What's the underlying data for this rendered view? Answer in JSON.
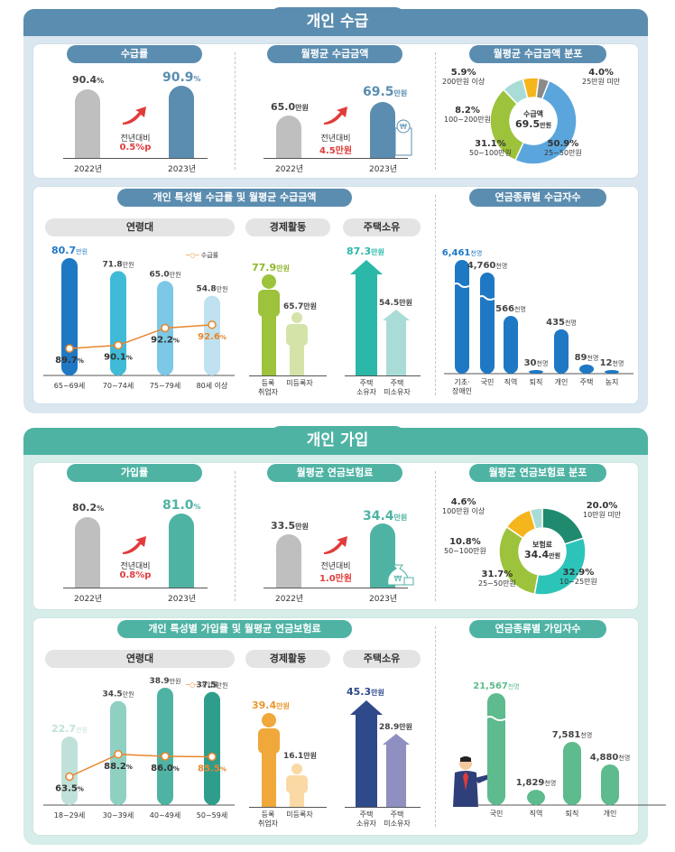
{
  "colors": {
    "receive_main": "#5b8db0",
    "join_main": "#4fb3a4",
    "gray_bar": "#bfbfbf",
    "receive_bar": "#5b8db0",
    "join_bar": "#4fb3a4",
    "red": "#e23b3b",
    "orange": "#e8862c"
  },
  "receive": {
    "title": "개인 수급",
    "rate": {
      "pill": "수급률",
      "y2022": "90.4",
      "y2023": "90.9",
      "unit": "%",
      "chg_label": "전년대비",
      "chg_value": "0.5",
      "chg_unit": "%p",
      "x2022": "2022년",
      "x2023": "2023년"
    },
    "amount": {
      "pill": "월평균 수급금액",
      "y2022": "65.0",
      "y2023": "69.5",
      "unit": "만원",
      "chg_label": "전년대비",
      "chg_value": "4.5",
      "chg_unit": "만원",
      "x2022": "2022년",
      "x2023": "2023년"
    },
    "dist": {
      "pill": "월평균 수급금액 분포",
      "center_label": "수급액",
      "center_value": "69.5",
      "center_unit": "만원",
      "slices": [
        {
          "pct": "50.9",
          "range": "25~50만원"
        },
        {
          "pct": "31.1",
          "range": "50~100만원"
        },
        {
          "pct": "8.2",
          "range": "100~200만원"
        },
        {
          "pct": "5.9",
          "range": "200만원 이상"
        },
        {
          "pct": "4.0",
          "range": "25만원 미만"
        }
      ]
    },
    "char": {
      "pill": "개인 특성별 수급률 및 월평균 수급금액",
      "age_pill": "연령대",
      "econ_pill": "경제활동",
      "house_pill": "주택소유",
      "legend": "수급률",
      "age": [
        {
          "cat": "65~69세",
          "amount": "80.7",
          "rate": "89.7"
        },
        {
          "cat": "70~74세",
          "amount": "71.8",
          "rate": "90.1"
        },
        {
          "cat": "75~79세",
          "amount": "65.0",
          "rate": "92.2"
        },
        {
          "cat": "80세 이상",
          "amount": "54.8",
          "rate": "92.6"
        }
      ],
      "econ": [
        {
          "cat1": "등록",
          "cat2": "취업자",
          "amount": "77.9"
        },
        {
          "cat1": "미등록자",
          "cat2": "",
          "amount": "65.7"
        }
      ],
      "house": [
        {
          "cat1": "주택",
          "cat2": "소유자",
          "amount": "87.3"
        },
        {
          "cat1": "주택",
          "cat2": "미소유자",
          "amount": "54.5"
        }
      ],
      "unit": "만원"
    },
    "types": {
      "pill": "연금종류별 수급자수",
      "unit": "천명",
      "items": [
        {
          "cat1": "기초·",
          "cat2": "장애인",
          "value": "6,461"
        },
        {
          "cat1": "국민",
          "cat2": "",
          "value": "4,760"
        },
        {
          "cat1": "직역",
          "cat2": "",
          "value": "566"
        },
        {
          "cat1": "퇴직",
          "cat2": "",
          "value": "30"
        },
        {
          "cat1": "개인",
          "cat2": "",
          "value": "435"
        },
        {
          "cat1": "주택",
          "cat2": "",
          "value": "89"
        },
        {
          "cat1": "농지",
          "cat2": "",
          "value": "12"
        }
      ]
    }
  },
  "join": {
    "title": "개인 가입",
    "rate": {
      "pill": "가입률",
      "y2022": "80.2",
      "y2023": "81.0",
      "unit": "%",
      "chg_label": "전년대비",
      "chg_value": "0.8",
      "chg_unit": "%p",
      "x2022": "2022년",
      "x2023": "2023년"
    },
    "amount": {
      "pill": "월평균 연금보험료",
      "y2022": "33.5",
      "y2023": "34.4",
      "unit": "만원",
      "chg_label": "전년대비",
      "chg_value": "1.0",
      "chg_unit": "만원",
      "x2022": "2022년",
      "x2023": "2023년"
    },
    "dist": {
      "pill": "월평균 연금보험료 분포",
      "center_label": "보험료",
      "center_value": "34.4",
      "center_unit": "만원",
      "slices": [
        {
          "pct": "20.0",
          "range": "10만원 미만"
        },
        {
          "pct": "32.9",
          "range": "10~25만원"
        },
        {
          "pct": "31.7",
          "range": "25~50만원"
        },
        {
          "pct": "10.8",
          "range": "50~100만원"
        },
        {
          "pct": "4.6",
          "range": "100만원 이상"
        }
      ]
    },
    "char": {
      "pill": "개인 특성별 가입률 및 월평균 연금보험료",
      "age_pill": "연령대",
      "econ_pill": "경제활동",
      "house_pill": "주택소유",
      "legend": "가입률",
      "age": [
        {
          "cat": "18~29세",
          "amount": "22.7",
          "rate": "63.5"
        },
        {
          "cat": "30~39세",
          "amount": "34.5",
          "rate": "88.2"
        },
        {
          "cat": "40~49세",
          "amount": "38.9",
          "rate": "86.0"
        },
        {
          "cat": "50~59세",
          "amount": "37.5",
          "rate": "85.5"
        }
      ],
      "econ": [
        {
          "cat1": "등록",
          "cat2": "취업자",
          "amount": "39.4"
        },
        {
          "cat1": "미등록자",
          "cat2": "",
          "amount": "16.1"
        }
      ],
      "house": [
        {
          "cat1": "주택",
          "cat2": "소유자",
          "amount": "45.3"
        },
        {
          "cat1": "주택",
          "cat2": "미소유자",
          "amount": "28.9"
        }
      ],
      "unit": "만원"
    },
    "types": {
      "pill": "연금종류별 가입자수",
      "unit": "천명",
      "items": [
        {
          "cat1": "국민",
          "cat2": "",
          "value": "21,567"
        },
        {
          "cat1": "직역",
          "cat2": "",
          "value": "1,829"
        },
        {
          "cat1": "퇴직",
          "cat2": "",
          "value": "7,581"
        },
        {
          "cat1": "개인",
          "cat2": "",
          "value": "4,880"
        }
      ]
    }
  },
  "chart_data": [
    {
      "type": "bar",
      "title": "수급률",
      "categories": [
        "2022년",
        "2023년"
      ],
      "values": [
        90.4,
        90.9
      ],
      "unit": "%"
    },
    {
      "type": "bar",
      "title": "월평균 수급금액",
      "categories": [
        "2022년",
        "2023년"
      ],
      "values": [
        65.0,
        69.5
      ],
      "unit": "만원"
    },
    {
      "type": "pie",
      "title": "월평균 수급금액 분포",
      "categories": [
        "25~50만원",
        "50~100만원",
        "100~200만원",
        "200만원 이상",
        "25만원 미만"
      ],
      "values": [
        50.9,
        31.1,
        8.2,
        5.9,
        4.0
      ]
    },
    {
      "type": "bar",
      "title": "연령대별 수급금액",
      "categories": [
        "65~69세",
        "70~74세",
        "75~79세",
        "80세 이상"
      ],
      "series": [
        {
          "name": "월평균 수급금액(만원)",
          "values": [
            80.7,
            71.8,
            65.0,
            54.8
          ]
        },
        {
          "name": "수급률(%)",
          "values": [
            89.7,
            90.1,
            92.2,
            92.6
          ]
        }
      ]
    },
    {
      "type": "bar",
      "title": "경제활동별 수급금액",
      "categories": [
        "등록 취업자",
        "미등록자"
      ],
      "values": [
        77.9,
        65.7
      ]
    },
    {
      "type": "bar",
      "title": "주택소유별 수급금액",
      "categories": [
        "주택 소유자",
        "주택 미소유자"
      ],
      "values": [
        87.3,
        54.5
      ]
    },
    {
      "type": "bar",
      "title": "연금종류별 수급자수(천명)",
      "categories": [
        "기초·장애인",
        "국민",
        "직역",
        "퇴직",
        "개인",
        "주택",
        "농지"
      ],
      "values": [
        6461,
        4760,
        566,
        30,
        435,
        89,
        12
      ]
    },
    {
      "type": "bar",
      "title": "가입률",
      "categories": [
        "2022년",
        "2023년"
      ],
      "values": [
        80.2,
        81.0
      ],
      "unit": "%"
    },
    {
      "type": "bar",
      "title": "월평균 연금보험료",
      "categories": [
        "2022년",
        "2023년"
      ],
      "values": [
        33.5,
        34.4
      ],
      "unit": "만원"
    },
    {
      "type": "pie",
      "title": "월평균 연금보험료 분포",
      "categories": [
        "10만원 미만",
        "10~25만원",
        "25~50만원",
        "50~100만원",
        "100만원 이상"
      ],
      "values": [
        20.0,
        32.9,
        31.7,
        10.8,
        4.6
      ]
    },
    {
      "type": "bar",
      "title": "연령대별 연금보험료",
      "categories": [
        "18~29세",
        "30~39세",
        "40~49세",
        "50~59세"
      ],
      "series": [
        {
          "name": "월평균 연금보험료(만원)",
          "values": [
            22.7,
            34.5,
            38.9,
            37.5
          ]
        },
        {
          "name": "가입률(%)",
          "values": [
            63.5,
            88.2,
            86.0,
            85.5
          ]
        }
      ]
    },
    {
      "type": "bar",
      "title": "경제활동별 연금보험료",
      "categories": [
        "등록 취업자",
        "미등록자"
      ],
      "values": [
        39.4,
        16.1
      ]
    },
    {
      "type": "bar",
      "title": "주택소유별 연금보험료",
      "categories": [
        "주택 소유자",
        "주택 미소유자"
      ],
      "values": [
        45.3,
        28.9
      ]
    },
    {
      "type": "bar",
      "title": "연금종류별 가입자수(천명)",
      "categories": [
        "국민",
        "직역",
        "퇴직",
        "개인"
      ],
      "values": [
        21567,
        1829,
        7581,
        4880
      ]
    }
  ]
}
